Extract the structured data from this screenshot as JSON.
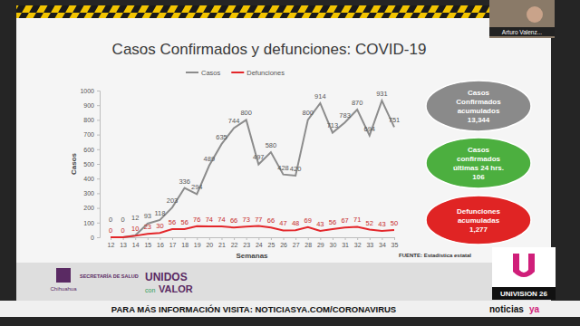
{
  "chart_data": {
    "type": "line",
    "title": "Casos Confirmados y defunciones: COVID-19",
    "x_label": "Semanas",
    "y_label": "Casos",
    "categories": [
      "12",
      "13",
      "14",
      "15",
      "16",
      "17",
      "18",
      "19",
      "20",
      "21",
      "22",
      "23",
      "24",
      "25",
      "26",
      "27",
      "28",
      "29",
      "30",
      "31",
      "32",
      "33",
      "34",
      "35"
    ],
    "series": [
      {
        "name": "Casos",
        "color": "#8c8c8c",
        "values": [
          0,
          0,
          12,
          93,
          118,
          203,
          336,
          294,
          489,
          635,
          744,
          800,
          497,
          580,
          428,
          420,
          800,
          914,
          713,
          783,
          870,
          694,
          931,
          751
        ]
      },
      {
        "name": "Defunciones",
        "color": "#e3262a",
        "values": [
          0,
          0,
          10,
          23,
          30,
          56,
          56,
          76,
          74,
          74,
          66,
          73,
          77,
          66,
          47,
          48,
          69,
          43,
          56,
          67,
          71,
          52,
          43,
          50
        ]
      }
    ],
    "ylim": [
      0,
      1000
    ],
    "yticks": [
      0,
      100,
      200,
      300,
      400,
      500,
      600,
      700,
      800,
      900,
      1000
    ],
    "grid": false,
    "legend": "top",
    "data_labels": true
  },
  "stats": [
    {
      "lines": [
        "Casos",
        "Confirmados",
        "acumulados",
        "13,344"
      ]
    },
    {
      "lines": [
        "Casos",
        "confirmados",
        "últimas 24 hrs.",
        "106"
      ]
    },
    {
      "lines": [
        "Defunciones",
        "acumuladas",
        "1,277"
      ]
    }
  ],
  "source": "FUENTE: Estadística estatal",
  "presenter": "Arturo Valenz...",
  "logos": {
    "state": "Chihuahua",
    "department": "SECRETARÍA DE SALUD",
    "campaign": [
      "UNIDOS",
      "con",
      "VALOR"
    ]
  },
  "broadcast": {
    "banner": "PARA MÁS INFORMACIÓN VISITA: NOTICIASYA.COM/CORONAVIRUS",
    "channel": "UNIVISION 26",
    "brand": [
      "noticias",
      "ya"
    ]
  }
}
